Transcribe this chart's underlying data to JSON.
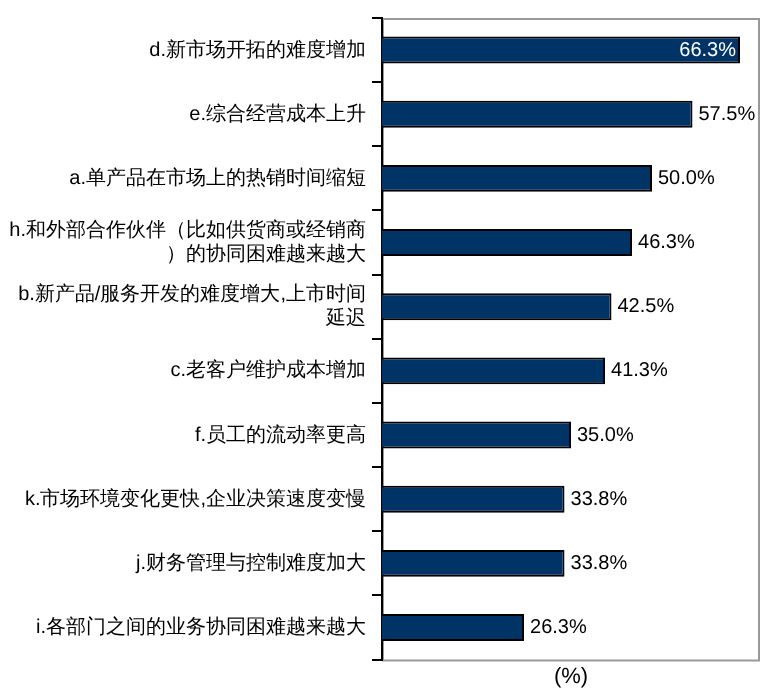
{
  "chart_data": {
    "type": "bar",
    "orientation": "horizontal",
    "xlabel": "(%)",
    "categories": [
      "d.新市场开拓的难度增加",
      "e.综合经营成本上升",
      "a.单产品在市场上的热销时间缩短",
      "h.和外部合作伙伴（比如供货商或经销商）的协同困难越来越大",
      "b.新产品/服务开发的难度增大,上市时间延迟",
      "c.老客户维护成本增加",
      "f.员工的流动率更高",
      "k.市场环境变化更快,企业决策速度变慢",
      "j.财务管理与控制难度加大",
      "i.各部门之间的业务协同困难越来越大"
    ],
    "values": [
      66.3,
      57.5,
      50.0,
      46.3,
      42.5,
      41.3,
      35.0,
      33.8,
      33.8,
      26.3
    ],
    "value_labels": [
      "66.3%",
      "57.5%",
      "50.0%",
      "46.3%",
      "42.5%",
      "41.3%",
      "35.0%",
      "33.8%",
      "33.8%",
      "26.3%"
    ],
    "color": "#003366",
    "xlim": [
      0,
      70
    ],
    "tick_labels": "y",
    "grid": false,
    "legend": false
  }
}
